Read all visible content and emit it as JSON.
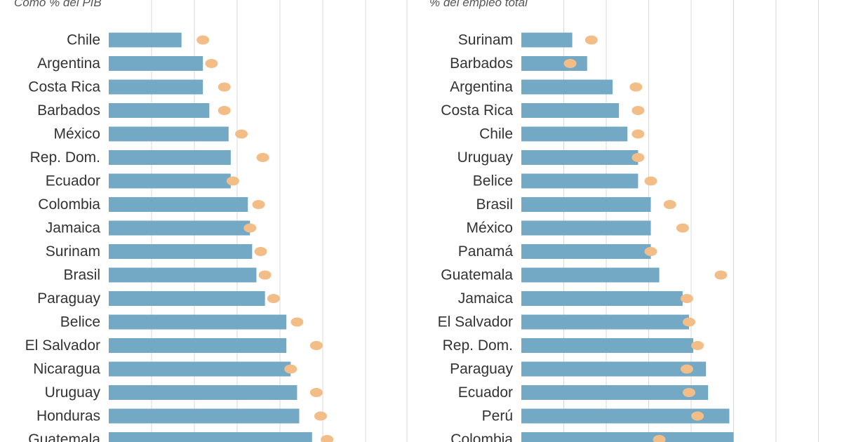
{
  "colors": {
    "bar": "#74a9c6",
    "dot": "#f2bd86",
    "grid": "#d9d9d9",
    "label": "#333333"
  },
  "chart_data": [
    {
      "type": "bar",
      "orientation": "horizontal",
      "subtitle": "Como % del PIB",
      "categories": [
        "Chile",
        "Argentina",
        "Costa Rica",
        "Barbados",
        "México",
        "Rep. Dom.",
        "Ecuador",
        "Colombia",
        "Jamaica",
        "Surinam",
        "Brasil",
        "Paraguay",
        "Belice",
        "El Salvador",
        "Nicaragua",
        "Uruguay",
        "Honduras",
        "Guatemala"
      ],
      "series": [
        {
          "name": "bar",
          "values": [
            17,
            22,
            22,
            23.5,
            28,
            28.5,
            28.5,
            32.5,
            33,
            33.5,
            34.5,
            36.5,
            41.5,
            41.5,
            42.5,
            44,
            44.5,
            47.5
          ]
        },
        {
          "name": "dot",
          "values": [
            22,
            24,
            27,
            27,
            31,
            36,
            29,
            35,
            33,
            35.5,
            36.5,
            38.5,
            44,
            48.5,
            42.5,
            48.5,
            49.5,
            51
          ]
        }
      ],
      "xlim": [
        0,
        60
      ],
      "grid": true
    },
    {
      "type": "bar",
      "orientation": "horizontal",
      "subtitle": "% del empleo total",
      "categories": [
        "Surinam",
        "Barbados",
        "Argentina",
        "Costa Rica",
        "Chile",
        "Uruguay",
        "Belice",
        "Brasil",
        "México",
        "Panamá",
        "Guatemala",
        "Jamaica",
        "El Salvador",
        "Rep. Dom.",
        "Paraguay",
        "Ecuador",
        "Perú",
        "Colombia"
      ],
      "series": [
        {
          "name": "bar",
          "values": [
            12,
            15.5,
            21.5,
            23,
            25,
            27.5,
            27.5,
            30.5,
            30.5,
            30.5,
            32.5,
            38,
            39.5,
            40.5,
            43.5,
            44,
            49,
            50
          ]
        },
        {
          "name": "dot",
          "values": [
            16.5,
            11.5,
            27,
            27.5,
            27.5,
            27.5,
            30.5,
            35,
            38,
            30.5,
            47,
            39,
            39.5,
            41.5,
            39,
            39.5,
            41.5,
            32.5
          ]
        }
      ],
      "xlim": [
        0,
        70
      ],
      "grid": true
    }
  ]
}
